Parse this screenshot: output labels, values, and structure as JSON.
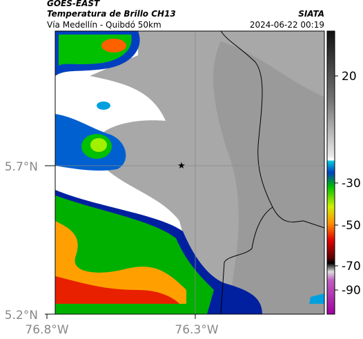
{
  "header": {
    "title": "GOES-EAST",
    "subtitle": "Temperatura de Brillo CH13",
    "source": "SIATA",
    "location": "Vía Medellín - Quibdó 50km",
    "datetime": "2024-06-22 00:19"
  },
  "axes": {
    "y_ticks": [
      "5.7°N",
      "5.2°N"
    ],
    "x_ticks": [
      "76.8°W",
      "76.3°W"
    ]
  },
  "colorbar": {
    "ticks": [
      "20",
      "-30",
      "-50",
      "-70",
      "-90"
    ]
  }
}
